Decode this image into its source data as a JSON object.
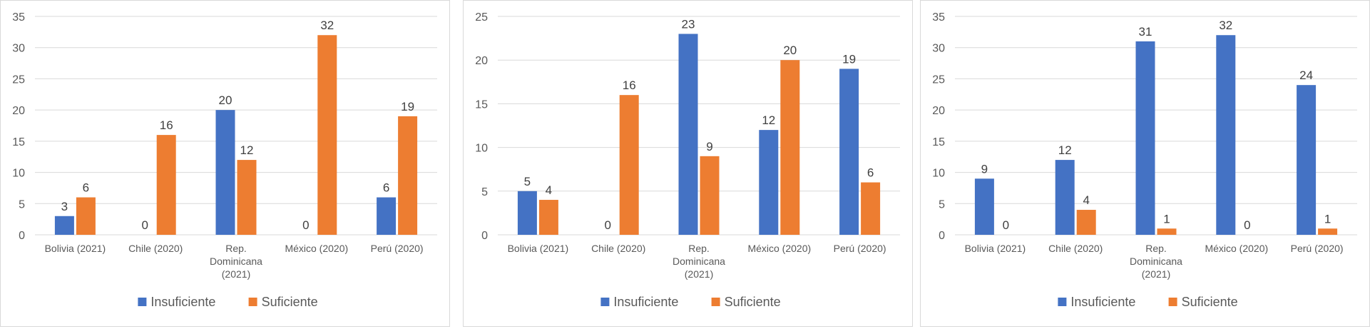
{
  "chart_data": [
    {
      "type": "bar",
      "categories": [
        [
          "Bolivia (2021)"
        ],
        [
          "Chile (2020)"
        ],
        [
          "Rep.",
          "Dominicana",
          "(2021)"
        ],
        [
          "México (2020)"
        ],
        [
          "Perú (2020)"
        ]
      ],
      "series": [
        {
          "name": "Insuficiente",
          "values": [
            3,
            0,
            20,
            0,
            6
          ]
        },
        {
          "name": "Suficiente",
          "values": [
            6,
            16,
            12,
            32,
            19
          ]
        }
      ],
      "ylim": [
        0,
        35
      ],
      "yticks": [
        0,
        5,
        10,
        15,
        20,
        25,
        30,
        35
      ],
      "grid": true,
      "legend": "bottom"
    },
    {
      "type": "bar",
      "categories": [
        [
          "Bolivia (2021)"
        ],
        [
          "Chile (2020)"
        ],
        [
          "Rep.",
          "Dominicana",
          "(2021)"
        ],
        [
          "México (2020)"
        ],
        [
          "Perú (2020)"
        ]
      ],
      "series": [
        {
          "name": "Insuficiente",
          "values": [
            5,
            0,
            23,
            12,
            19
          ]
        },
        {
          "name": "Suficiente",
          "values": [
            4,
            16,
            9,
            20,
            6
          ]
        }
      ],
      "ylim": [
        0,
        25
      ],
      "yticks": [
        0,
        5,
        10,
        15,
        20,
        25
      ],
      "grid": true,
      "legend": "bottom"
    },
    {
      "type": "bar",
      "categories": [
        [
          "Bolivia (2021)"
        ],
        [
          "Chile (2020)"
        ],
        [
          "Rep.",
          "Dominicana",
          "(2021)"
        ],
        [
          "México (2020)"
        ],
        [
          "Perú (2020)"
        ]
      ],
      "series": [
        {
          "name": "Insuficiente",
          "values": [
            9,
            12,
            31,
            32,
            24
          ]
        },
        {
          "name": "Suficiente",
          "values": [
            0,
            4,
            1,
            0,
            1
          ]
        }
      ],
      "ylim": [
        0,
        35
      ],
      "yticks": [
        0,
        5,
        10,
        15,
        20,
        25,
        30,
        35
      ],
      "grid": true,
      "legend": "bottom"
    }
  ],
  "colors": {
    "Insuficiente": "#4472c4",
    "Suficiente": "#ed7d31",
    "grid": "#d9d9d9",
    "text": "#595959"
  }
}
